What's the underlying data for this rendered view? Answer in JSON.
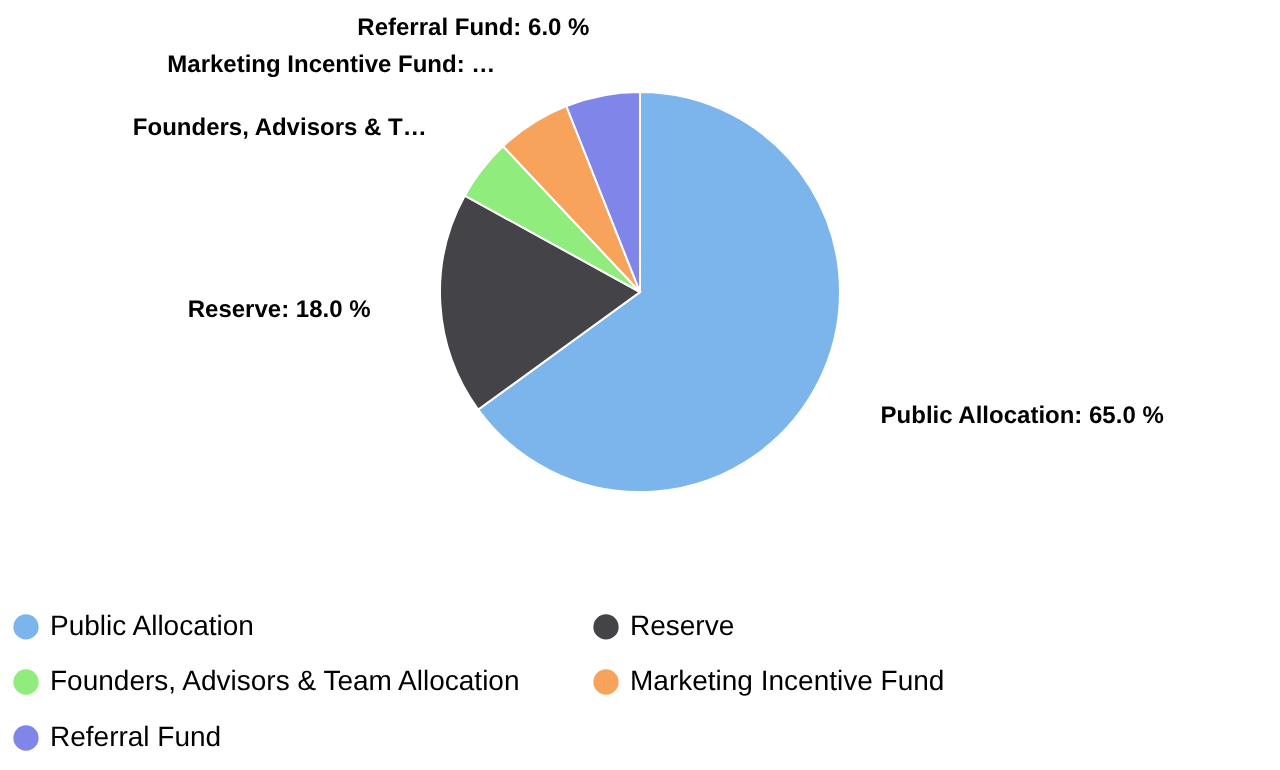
{
  "chart_data": {
    "type": "pie",
    "categories": [
      "Public Allocation",
      "Reserve",
      "Founders, Advisors & Team Allocation",
      "Marketing Incentive Fund",
      "Referral Fund"
    ],
    "values": [
      65,
      18,
      5,
      6,
      6
    ],
    "colors": [
      "#7cb5ec",
      "#434348",
      "#90ed7d",
      "#f7a35c",
      "#8085e9"
    ],
    "value_labels": [
      "Public Allocation: 65.0 %",
      "Reserve: 18.0 %",
      "Founders, Advisors & T…",
      "Marketing Incentive Fund: …",
      "Referral Fund: 6.0 %"
    ],
    "legend": "bottom"
  }
}
